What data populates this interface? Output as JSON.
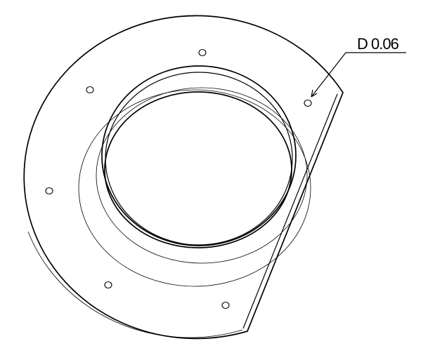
{
  "annotation": {
    "label": "D 0.06"
  }
}
